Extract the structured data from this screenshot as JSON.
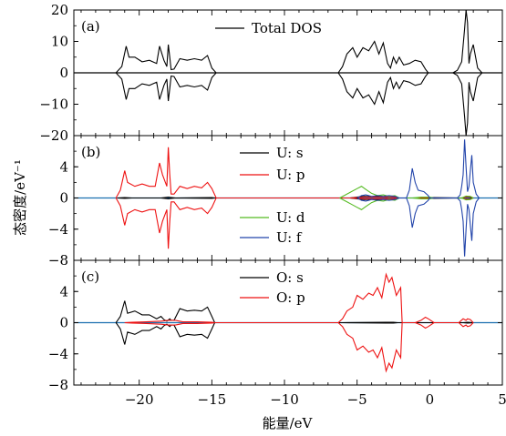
{
  "figure": {
    "ylabel": "态密度/eV⁻¹",
    "xlabel": "能量/eV",
    "x_ticks": [
      -20,
      -15,
      -10,
      -5,
      0,
      5
    ],
    "x_tick_labels": [
      "−20",
      "−15",
      "−10",
      "−5",
      "0",
      "5"
    ]
  },
  "colors": {
    "total": "#000000",
    "s": "#000000",
    "p": "#ee1111",
    "d": "#55bb22",
    "f": "#2244aa",
    "zero_line": "#1a6fb0"
  },
  "chart_data": [
    {
      "type": "line",
      "panel": "(a)",
      "xlim": [
        -24.5,
        5
      ],
      "ylim": [
        -20,
        20
      ],
      "y_ticks": [
        -20,
        -10,
        0,
        10,
        20
      ],
      "y_tick_labels": [
        "−20",
        "−10",
        "0",
        "10",
        "20"
      ],
      "legend": "top-center",
      "series": [
        {
          "name": "Total DOS",
          "color": "#000000",
          "mirror": true,
          "x": [
            -21.6,
            -21.2,
            -20.9,
            -20.7,
            -20.3,
            -19.8,
            -19.3,
            -18.8,
            -18.6,
            -18.3,
            -18.1,
            -18.0,
            -17.9,
            -17.8,
            -17.6,
            -17.2,
            -16.7,
            -16.2,
            -15.7,
            -15.3,
            -15.0,
            -14.7,
            -6.3,
            -6.0,
            -5.7,
            -5.3,
            -5.0,
            -4.6,
            -4.2,
            -3.8,
            -3.5,
            -3.2,
            -2.9,
            -2.7,
            -2.5,
            -2.3,
            -2.1,
            -1.8,
            -1.4,
            -1.0,
            -0.6,
            -0.3,
            -0.1,
            1.6,
            1.9,
            2.2,
            2.4,
            2.5,
            2.6,
            2.7,
            2.8,
            3.0,
            3.3,
            3.6
          ],
          "y": [
            0,
            2,
            8.5,
            5,
            5,
            3.5,
            4,
            3,
            8.5,
            4,
            2,
            9,
            5,
            1,
            1.2,
            4.5,
            4,
            4.5,
            4,
            5.5,
            1.5,
            0,
            0,
            2,
            6,
            8,
            5,
            8,
            7,
            10,
            6,
            9.5,
            3,
            1.5,
            5,
            3,
            5,
            2.5,
            3,
            4,
            3.5,
            1.2,
            0,
            0,
            0.8,
            3.5,
            14,
            20,
            16,
            3,
            6,
            9,
            1.5,
            0
          ]
        }
      ]
    },
    {
      "type": "line",
      "panel": "(b)",
      "xlim": [
        -24.5,
        5
      ],
      "ylim": [
        -8,
        8
      ],
      "y_ticks": [
        -8,
        -4,
        0,
        4
      ],
      "y_tick_labels": [
        "−8",
        "−4",
        "0",
        "4"
      ],
      "legend": "center",
      "series": [
        {
          "name": "U: s",
          "color": "#000000",
          "mirror": true,
          "x": [
            -21.5,
            -21.0,
            -20.5,
            -18.5,
            -18.0,
            -17.5,
            -15.0,
            -14.8,
            -5.5,
            -5.0,
            -4.5,
            -4.0,
            -3.5,
            -3.0,
            -2.5,
            -2.2,
            -0.3,
            0.0,
            2.2,
            2.4,
            2.6,
            2.8,
            3.0
          ],
          "y": [
            0,
            0.05,
            0,
            0,
            0.1,
            0,
            0.05,
            0,
            0,
            0.1,
            0.2,
            0.15,
            0.2,
            0.1,
            0.2,
            0,
            0,
            0.05,
            0,
            0.1,
            0.15,
            0.1,
            0
          ]
        },
        {
          "name": "U: p",
          "color": "#ee1111",
          "mirror": true,
          "x": [
            -21.6,
            -21.3,
            -21.0,
            -20.8,
            -20.3,
            -19.8,
            -19.3,
            -18.9,
            -18.6,
            -18.4,
            -18.1,
            -18.0,
            -17.9,
            -17.8,
            -17.6,
            -17.2,
            -16.7,
            -16.2,
            -15.7,
            -15.3,
            -15.0,
            -14.7,
            -5.5,
            -4.5,
            -3.5,
            -2.5,
            -2.2,
            -0.4,
            0.0,
            2.2,
            2.5,
            2.8,
            3.0
          ],
          "y": [
            0,
            1,
            3.5,
            2,
            1.5,
            1.8,
            1.5,
            1.5,
            4.5,
            3,
            1.5,
            6.5,
            3,
            0.5,
            0.5,
            1.5,
            1.2,
            1.5,
            1.3,
            2,
            1.2,
            0,
            0,
            0.1,
            0.1,
            0.1,
            0,
            0,
            0,
            0,
            0.15,
            0.15,
            0
          ]
        },
        {
          "name": "U: d",
          "color": "#55bb22",
          "mirror": true,
          "x": [
            -6.2,
            -5.8,
            -5.4,
            -5.0,
            -4.7,
            -4.4,
            -4.0,
            -3.6,
            -3.2,
            -2.8,
            -2.4,
            -2.1,
            -1.2,
            -0.6,
            0.0,
            0.3,
            2.2,
            2.5,
            2.8,
            3.0
          ],
          "y": [
            0,
            0.4,
            0.8,
            1.2,
            1.5,
            1.1,
            0.6,
            0.3,
            0.4,
            0.2,
            0.3,
            0,
            0,
            0.1,
            0.1,
            0,
            0,
            0.25,
            0.2,
            0
          ]
        },
        {
          "name": "U: f",
          "color": "#2244aa",
          "mirror": true,
          "x": [
            -5.0,
            -4.7,
            -4.4,
            -4.0,
            -3.6,
            -3.2,
            -2.8,
            -2.4,
            -2.1,
            -1.6,
            -1.4,
            -1.2,
            -1.0,
            -0.8,
            -0.4,
            -0.1,
            0.0,
            1.9,
            2.1,
            2.2,
            2.3,
            2.4,
            2.5,
            2.6,
            2.7,
            2.8,
            2.9,
            3.0,
            3.2,
            3.4
          ],
          "y": [
            0,
            0.3,
            0.4,
            0.2,
            0.3,
            0.2,
            0.3,
            0.2,
            0,
            0,
            1,
            3.8,
            2,
            1,
            0.8,
            0.3,
            0,
            0,
            0.4,
            1.5,
            3,
            7.5,
            4,
            0.8,
            1.5,
            3.5,
            5.5,
            2,
            0.5,
            0
          ]
        }
      ]
    },
    {
      "type": "line",
      "panel": "(c)",
      "xlim": [
        -24.5,
        5
      ],
      "ylim": [
        -8,
        8
      ],
      "y_ticks": [
        -8,
        -4,
        0,
        4
      ],
      "y_tick_labels": [
        "−8",
        "−4",
        "0",
        "4"
      ],
      "legend": "top-left",
      "series": [
        {
          "name": "O: s",
          "color": "#000000",
          "mirror": true,
          "x": [
            -21.6,
            -21.3,
            -21.0,
            -20.8,
            -20.3,
            -19.8,
            -19.3,
            -18.8,
            -18.5,
            -18.3,
            -18.1,
            -17.9,
            -17.8,
            -17.6,
            -17.2,
            -16.7,
            -16.2,
            -15.7,
            -15.3,
            -15.0,
            -14.8,
            -6.0,
            -3.0,
            -2.5,
            -2.2,
            -0.3,
            0.0,
            2.3,
            2.6,
            3.0
          ],
          "y": [
            0,
            0.8,
            2.8,
            1.2,
            1.5,
            1,
            1,
            0.5,
            0.8,
            0.4,
            0.2,
            0.5,
            0.3,
            0.3,
            1.8,
            1.5,
            1.6,
            1.5,
            2,
            0.8,
            0,
            0,
            0.05,
            0.05,
            0,
            0,
            0,
            0,
            0.05,
            0
          ]
        },
        {
          "name": "O: p",
          "color": "#ee1111",
          "mirror": true,
          "x": [
            -21.0,
            -20.5,
            -19.5,
            -18.5,
            -18.0,
            -17.5,
            -17.0,
            -16.0,
            -15.0,
            -14.8,
            -6.3,
            -6.0,
            -5.7,
            -5.3,
            -5.0,
            -4.6,
            -4.2,
            -3.9,
            -3.6,
            -3.3,
            -3.0,
            -2.8,
            -2.6,
            -2.3,
            -2.0,
            -1.9,
            -1.0,
            -0.6,
            -0.3,
            -0.1,
            0.3,
            2.0,
            2.3,
            2.5,
            2.6,
            2.8,
            3.0
          ],
          "y": [
            0,
            0.05,
            0.1,
            0.2,
            0.3,
            0.3,
            0.1,
            0.1,
            0.05,
            0,
            0,
            0.5,
            1.5,
            2,
            3.5,
            3,
            3.8,
            3.5,
            4.5,
            3.2,
            6.2,
            5.2,
            5.8,
            3.5,
            4.5,
            0,
            0,
            0.3,
            0.7,
            0.5,
            0,
            0,
            0.5,
            0.3,
            0.5,
            0.4,
            0
          ]
        }
      ]
    }
  ]
}
